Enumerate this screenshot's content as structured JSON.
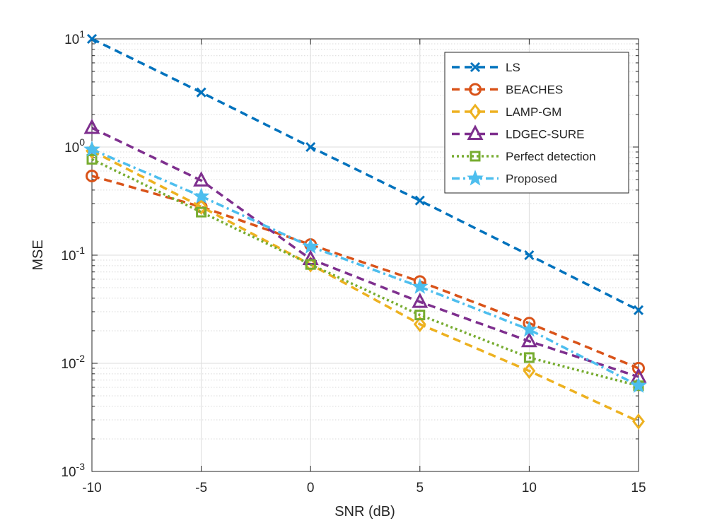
{
  "chart_data": {
    "type": "line",
    "title": "",
    "xlabel": "SNR (dB)",
    "ylabel": "MSE",
    "xscale": "linear",
    "yscale": "log",
    "xlim": [
      -10,
      15
    ],
    "ylim": [
      0.001,
      10
    ],
    "grid": true,
    "minor_grid": true,
    "legend_position": "top-right",
    "x_ticks": [
      -10,
      -5,
      0,
      5,
      10,
      15
    ],
    "x_tick_labels": [
      "-10",
      "-5",
      "0",
      "5",
      "10",
      "15"
    ],
    "y_ticks": [
      0.001,
      0.01,
      0.1,
      1,
      10
    ],
    "y_tick_labels": [
      {
        "base": "10",
        "exp": "-3"
      },
      {
        "base": "10",
        "exp": "-2"
      },
      {
        "base": "10",
        "exp": "-1"
      },
      {
        "base": "10",
        "exp": "0"
      },
      {
        "base": "10",
        "exp": "1"
      }
    ],
    "x": [
      -10,
      -5,
      0,
      5,
      10,
      15
    ],
    "series": [
      {
        "name": "LS",
        "values": [
          10,
          3.2,
          1.0,
          0.32,
          0.1,
          0.031
        ],
        "color": "#0072BD",
        "dash": "dashed",
        "marker": "x"
      },
      {
        "name": "BEACHES",
        "values": [
          0.54,
          0.28,
          0.125,
          0.057,
          0.0235,
          0.009
        ],
        "color": "#D95319",
        "dash": "dashed",
        "marker": "circle"
      },
      {
        "name": "LAMP-GM",
        "values": [
          0.92,
          0.28,
          0.082,
          0.023,
          0.0085,
          0.0029
        ],
        "color": "#EDB120",
        "dash": "dashed",
        "marker": "diamond"
      },
      {
        "name": "LDGEC-SURE",
        "values": [
          1.5,
          0.49,
          0.092,
          0.037,
          0.016,
          0.0075
        ],
        "color": "#7E2F8E",
        "dash": "dashed",
        "marker": "triangle"
      },
      {
        "name": "Perfect detection",
        "values": [
          0.77,
          0.25,
          0.082,
          0.028,
          0.0113,
          0.0062
        ],
        "color": "#77AC30",
        "dash": "dotted",
        "marker": "square"
      },
      {
        "name": "Proposed",
        "values": [
          0.95,
          0.35,
          0.12,
          0.051,
          0.0205,
          0.0062
        ],
        "color": "#4DBEEE",
        "dash": "dashdot",
        "marker": "star"
      }
    ]
  }
}
